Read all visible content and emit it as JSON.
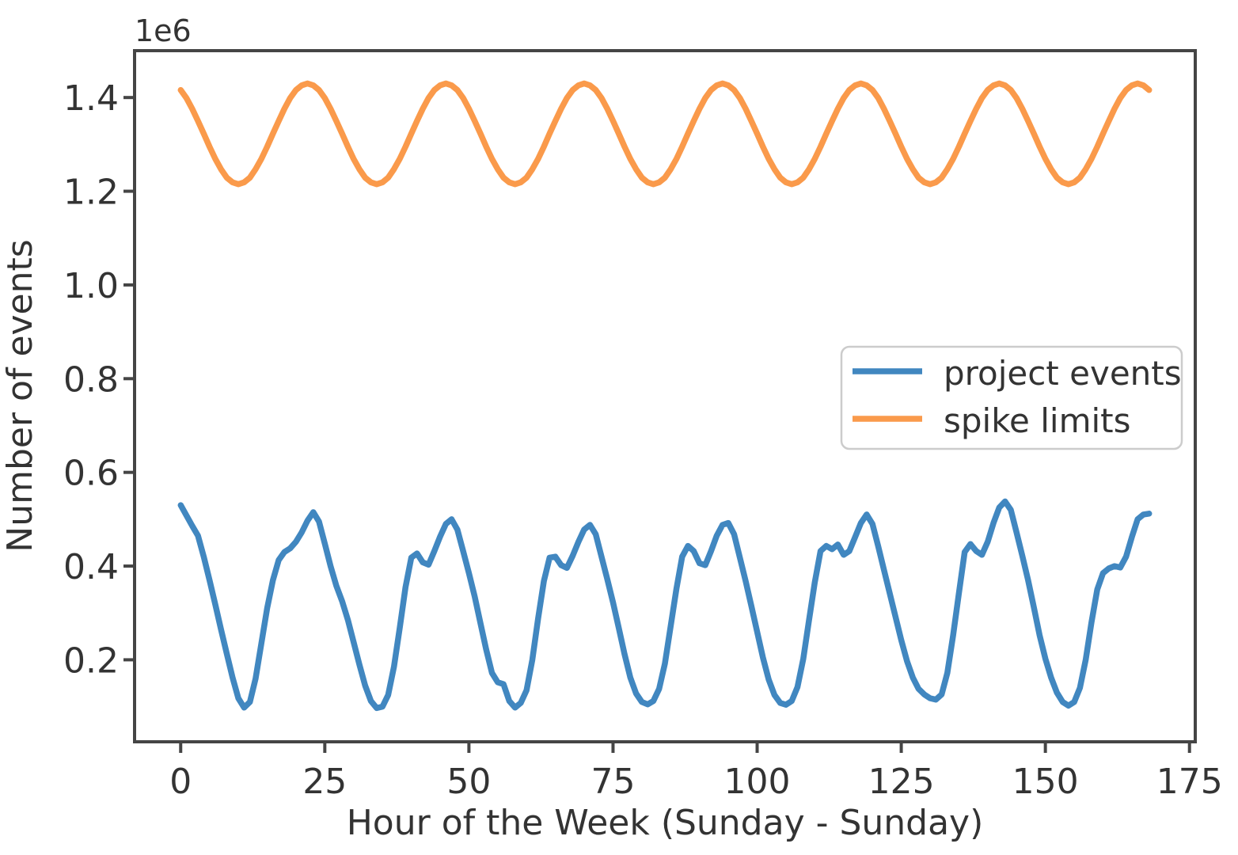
{
  "chart_data": {
    "type": "line",
    "title": "",
    "xlabel": "Hour of the Week (Sunday - Sunday)",
    "ylabel": "Number of events",
    "y_offset_text": "1e6",
    "x_ticks": [
      0,
      25,
      50,
      75,
      100,
      125,
      150,
      175
    ],
    "y_ticks": [
      0.2,
      0.4,
      0.6,
      0.8,
      1.0,
      1.2,
      1.4
    ],
    "xlim": [
      -8,
      176
    ],
    "ylim": [
      0.025,
      1.5
    ],
    "x_start": 0,
    "x_step": 1,
    "x_unit": "hour of week (0-168)",
    "values_unit": "millions of events (1e6)",
    "grid": false,
    "legend_position": "center right",
    "series": [
      {
        "name": "project events",
        "color": "#4187c0",
        "values": [
          0.53,
          0.508,
          0.486,
          0.465,
          0.42,
          0.37,
          0.318,
          0.265,
          0.213,
          0.162,
          0.118,
          0.098,
          0.11,
          0.16,
          0.235,
          0.31,
          0.37,
          0.413,
          0.43,
          0.438,
          0.452,
          0.472,
          0.497,
          0.515,
          0.495,
          0.448,
          0.4,
          0.358,
          0.325,
          0.285,
          0.238,
          0.19,
          0.145,
          0.112,
          0.097,
          0.1,
          0.125,
          0.185,
          0.268,
          0.355,
          0.418,
          0.427,
          0.408,
          0.403,
          0.432,
          0.463,
          0.49,
          0.5,
          0.478,
          0.432,
          0.385,
          0.335,
          0.278,
          0.222,
          0.172,
          0.152,
          0.148,
          0.112,
          0.098,
          0.108,
          0.135,
          0.2,
          0.288,
          0.368,
          0.418,
          0.42,
          0.402,
          0.396,
          0.422,
          0.452,
          0.478,
          0.488,
          0.468,
          0.42,
          0.372,
          0.322,
          0.268,
          0.212,
          0.162,
          0.128,
          0.11,
          0.105,
          0.112,
          0.138,
          0.192,
          0.272,
          0.352,
          0.42,
          0.443,
          0.432,
          0.406,
          0.402,
          0.432,
          0.465,
          0.488,
          0.492,
          0.468,
          0.418,
          0.368,
          0.315,
          0.26,
          0.205,
          0.158,
          0.125,
          0.108,
          0.104,
          0.112,
          0.142,
          0.202,
          0.285,
          0.365,
          0.432,
          0.443,
          0.436,
          0.446,
          0.424,
          0.432,
          0.462,
          0.492,
          0.51,
          0.49,
          0.442,
          0.392,
          0.342,
          0.292,
          0.242,
          0.197,
          0.162,
          0.138,
          0.126,
          0.118,
          0.115,
          0.126,
          0.172,
          0.252,
          0.342,
          0.43,
          0.447,
          0.432,
          0.424,
          0.452,
          0.492,
          0.525,
          0.538,
          0.52,
          0.472,
          0.422,
          0.37,
          0.312,
          0.252,
          0.202,
          0.162,
          0.13,
          0.11,
          0.102,
          0.11,
          0.14,
          0.2,
          0.28,
          0.35,
          0.385,
          0.395,
          0.4,
          0.397,
          0.42,
          0.462,
          0.5,
          0.51,
          0.512
        ]
      },
      {
        "name": "spike limits",
        "color": "#fa9a4b",
        "values": [
          1.416,
          1.399,
          1.376,
          1.35,
          1.323,
          1.295,
          1.269,
          1.247,
          1.229,
          1.219,
          1.215,
          1.219,
          1.229,
          1.247,
          1.269,
          1.295,
          1.323,
          1.35,
          1.376,
          1.399,
          1.416,
          1.426,
          1.43,
          1.426,
          1.416,
          1.399,
          1.376,
          1.35,
          1.323,
          1.295,
          1.269,
          1.247,
          1.229,
          1.219,
          1.215,
          1.219,
          1.229,
          1.247,
          1.269,
          1.295,
          1.323,
          1.35,
          1.376,
          1.399,
          1.416,
          1.426,
          1.43,
          1.426,
          1.416,
          1.399,
          1.376,
          1.35,
          1.323,
          1.295,
          1.269,
          1.247,
          1.229,
          1.219,
          1.215,
          1.219,
          1.229,
          1.247,
          1.269,
          1.295,
          1.323,
          1.35,
          1.376,
          1.399,
          1.416,
          1.426,
          1.43,
          1.426,
          1.416,
          1.399,
          1.376,
          1.35,
          1.323,
          1.295,
          1.269,
          1.247,
          1.229,
          1.219,
          1.215,
          1.219,
          1.229,
          1.247,
          1.269,
          1.295,
          1.323,
          1.35,
          1.376,
          1.399,
          1.416,
          1.426,
          1.43,
          1.426,
          1.416,
          1.399,
          1.376,
          1.35,
          1.323,
          1.295,
          1.269,
          1.247,
          1.229,
          1.219,
          1.215,
          1.219,
          1.229,
          1.247,
          1.269,
          1.295,
          1.323,
          1.35,
          1.376,
          1.399,
          1.416,
          1.426,
          1.43,
          1.426,
          1.416,
          1.399,
          1.376,
          1.35,
          1.323,
          1.295,
          1.269,
          1.247,
          1.229,
          1.219,
          1.215,
          1.219,
          1.229,
          1.247,
          1.269,
          1.295,
          1.323,
          1.35,
          1.376,
          1.399,
          1.416,
          1.426,
          1.43,
          1.426,
          1.416,
          1.399,
          1.376,
          1.35,
          1.323,
          1.295,
          1.269,
          1.247,
          1.229,
          1.219,
          1.215,
          1.219,
          1.229,
          1.247,
          1.269,
          1.295,
          1.323,
          1.35,
          1.376,
          1.399,
          1.416,
          1.426,
          1.43,
          1.426,
          1.416
        ]
      }
    ]
  },
  "figure": {
    "background": "#ffffff",
    "spine_color": "#454545",
    "text_color": "#333333",
    "legend_border_color": "#cccccc"
  }
}
